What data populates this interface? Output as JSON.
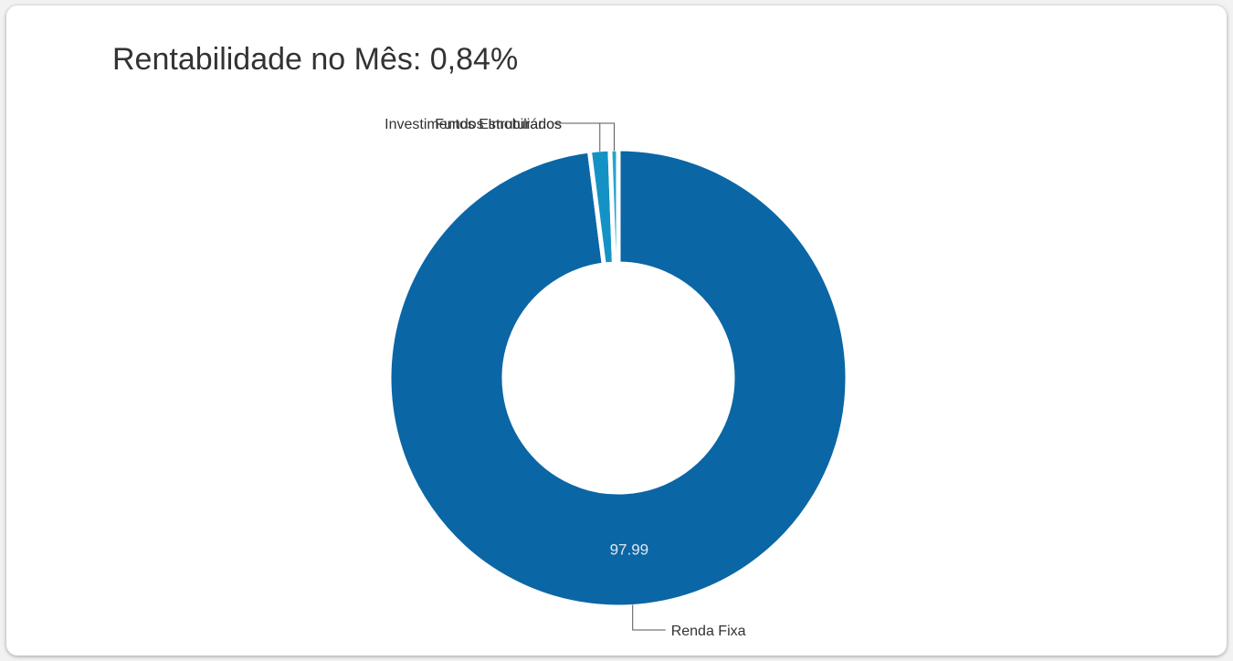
{
  "card": {
    "title": "Rentabilidade no Mês: 0,84%"
  },
  "chart_data": {
    "type": "pie",
    "variant": "donut",
    "title": "Rentabilidade no Mês: 0,84%",
    "categories": [
      "Renda Fixa",
      "Investimentos Estruturados",
      "Fundos Imobiliários"
    ],
    "values": [
      97.99,
      1.43,
      0.58
    ],
    "data_labels": [
      "97.99",
      "",
      ""
    ],
    "colors": [
      "#0b66a5",
      "#1592c5",
      "#27a3d1"
    ],
    "legend": "none"
  }
}
